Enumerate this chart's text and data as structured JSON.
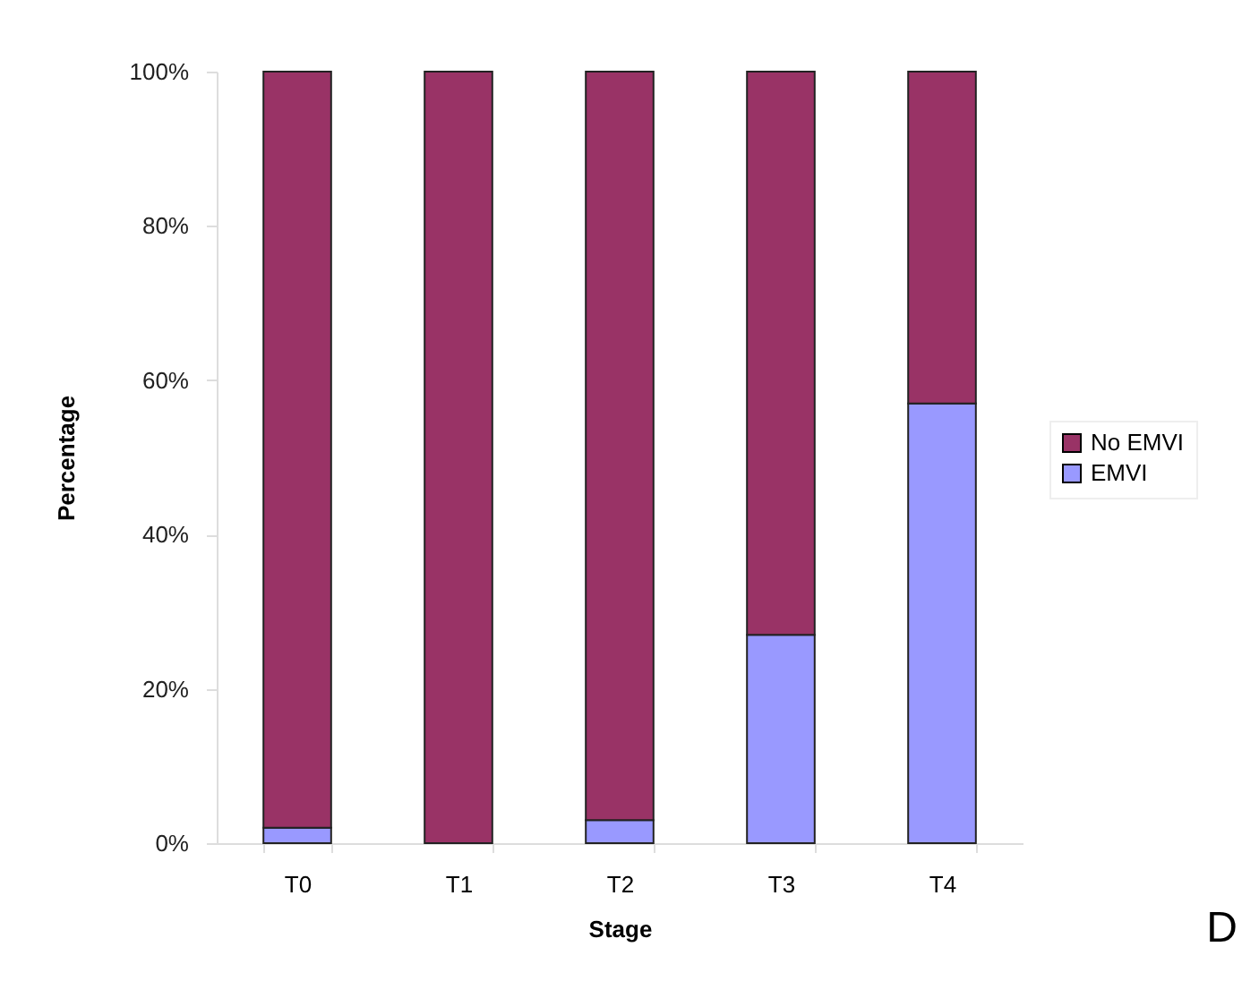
{
  "chart_data": {
    "type": "bar",
    "stacked": true,
    "xlabel": "Stage",
    "ylabel": "Percentage",
    "categories": [
      "T0",
      "T1",
      "T2",
      "T3",
      "T4"
    ],
    "series": [
      {
        "name": "EMVI",
        "color": "#9999ff",
        "values": [
          2,
          0,
          3,
          27,
          57
        ]
      },
      {
        "name": "No EMVI",
        "color": "#993366",
        "values": [
          98,
          100,
          97,
          73,
          43
        ]
      }
    ],
    "ylim": [
      0,
      100
    ],
    "yticks": [
      {
        "value": 0,
        "label": "0%"
      },
      {
        "value": 20,
        "label": "20%"
      },
      {
        "value": 40,
        "label": "40%"
      },
      {
        "value": 60,
        "label": "60%"
      },
      {
        "value": 80,
        "label": "80%"
      },
      {
        "value": 100,
        "label": "100%"
      }
    ],
    "legend": "right",
    "annotations": [
      "D"
    ]
  }
}
